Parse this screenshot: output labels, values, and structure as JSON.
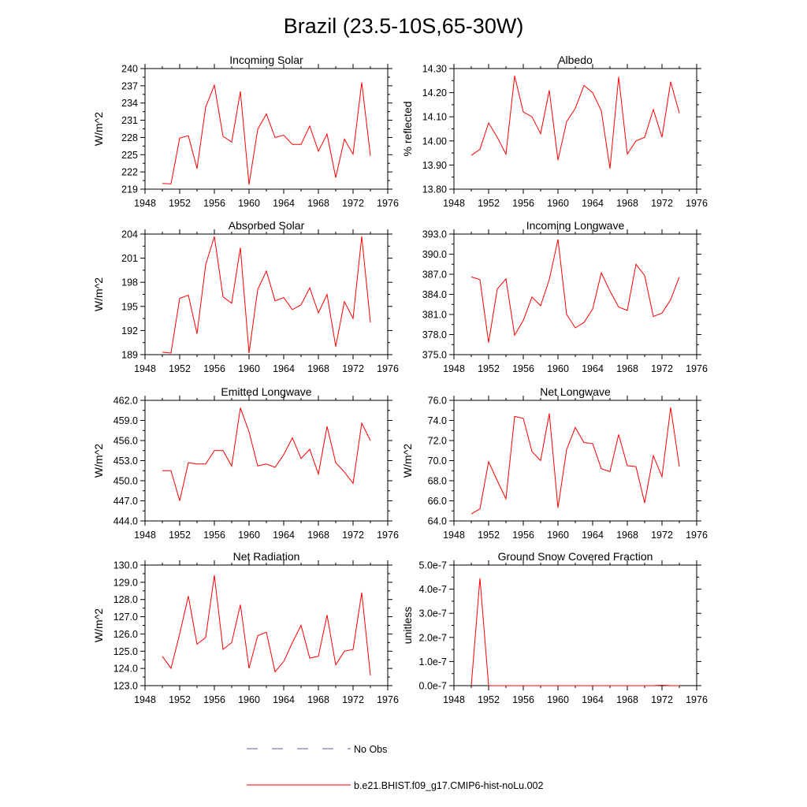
{
  "page": {
    "title": "Brazil (23.5-10S,65-30W)"
  },
  "colors": {
    "model_line": "#ff0000",
    "obs_line": "#5b5bb0",
    "axis": "#000000"
  },
  "legend": {
    "obs_label": "No Obs",
    "model_label": "b.e21.BHIST.f09_g17.CMIP6-hist-noLu.002"
  },
  "chart_data": [
    {
      "type": "line",
      "title": "Incoming Solar",
      "ylabel": "W/m^2",
      "xlim": [
        1948,
        1976
      ],
      "ylim": [
        219,
        240
      ],
      "xticks": [
        1948,
        1952,
        1956,
        1960,
        1964,
        1968,
        1972,
        1976
      ],
      "xtick_labels": [
        "1948",
        "1952",
        "1956",
        "1960",
        "1964",
        "1968",
        "1972",
        "1976"
      ],
      "yticks": [
        219,
        222,
        225,
        228,
        231,
        234,
        237,
        240
      ],
      "ytick_labels": [
        "219",
        "222",
        "225",
        "228",
        "231",
        "234",
        "237",
        "240"
      ],
      "x": [
        1950,
        1951,
        1952,
        1953,
        1954,
        1955,
        1956,
        1957,
        1958,
        1959,
        1960,
        1961,
        1962,
        1963,
        1964,
        1965,
        1966,
        1967,
        1968,
        1969,
        1970,
        1971,
        1972,
        1973,
        1974
      ],
      "series": [
        {
          "values": [
            220.0,
            219.9,
            227.9,
            228.3,
            222.6,
            233.3,
            237.1,
            228.2,
            227.2,
            236.0,
            219.8,
            229.4,
            232.1,
            228.0,
            228.4,
            226.8,
            226.8,
            230.0,
            225.6,
            228.6,
            221.0,
            227.7,
            225.1,
            237.6,
            224.8
          ]
        }
      ]
    },
    {
      "type": "line",
      "title": "Albedo",
      "ylabel": "% reflected",
      "xlim": [
        1948,
        1976
      ],
      "ylim": [
        13.8,
        14.3
      ],
      "xticks": [
        1948,
        1952,
        1956,
        1960,
        1964,
        1968,
        1972,
        1976
      ],
      "xtick_labels": [
        "1948",
        "1952",
        "1956",
        "1960",
        "1964",
        "1968",
        "1972",
        "1976"
      ],
      "yticks": [
        13.8,
        13.9,
        14.0,
        14.1,
        14.2,
        14.3
      ],
      "ytick_labels": [
        "13.80",
        "13.90",
        "14.00",
        "14.10",
        "14.20",
        "14.30"
      ],
      "x": [
        1950,
        1951,
        1952,
        1953,
        1954,
        1955,
        1956,
        1957,
        1958,
        1959,
        1960,
        1961,
        1962,
        1963,
        1964,
        1965,
        1966,
        1967,
        1968,
        1969,
        1970,
        1971,
        1972,
        1973,
        1974
      ],
      "series": [
        {
          "values": [
            13.94,
            13.965,
            14.075,
            14.015,
            13.945,
            14.27,
            14.12,
            14.1,
            14.03,
            14.21,
            13.92,
            14.08,
            14.135,
            14.23,
            14.2,
            14.125,
            13.885,
            14.265,
            13.945,
            14.0,
            14.015,
            14.13,
            14.015,
            14.245,
            14.115
          ]
        }
      ]
    },
    {
      "type": "line",
      "title": "Absorbed Solar",
      "ylabel": "W/m^2",
      "xlim": [
        1948,
        1976
      ],
      "ylim": [
        189,
        204
      ],
      "xticks": [
        1948,
        1952,
        1956,
        1960,
        1964,
        1968,
        1972,
        1976
      ],
      "xtick_labels": [
        "1948",
        "1952",
        "1956",
        "1960",
        "1964",
        "1968",
        "1972",
        "1976"
      ],
      "yticks": [
        189,
        192,
        195,
        198,
        201,
        204
      ],
      "ytick_labels": [
        "189",
        "192",
        "195",
        "198",
        "201",
        "204"
      ],
      "x": [
        1950,
        1951,
        1952,
        1953,
        1954,
        1955,
        1956,
        1957,
        1958,
        1959,
        1960,
        1961,
        1962,
        1963,
        1964,
        1965,
        1966,
        1967,
        1968,
        1969,
        1970,
        1971,
        1972,
        1973,
        1974
      ],
      "series": [
        {
          "values": [
            189.3,
            189.2,
            196.0,
            196.4,
            191.6,
            200.2,
            203.7,
            196.2,
            195.4,
            202.3,
            189.2,
            197.1,
            199.4,
            195.7,
            196.1,
            194.6,
            195.2,
            197.3,
            194.2,
            196.5,
            190.0,
            195.6,
            193.5,
            203.7,
            193.0
          ]
        }
      ]
    },
    {
      "type": "line",
      "title": "Incoming Longwave",
      "ylabel": "",
      "xlim": [
        1948,
        1976
      ],
      "ylim": [
        375,
        393
      ],
      "xticks": [
        1948,
        1952,
        1956,
        1960,
        1964,
        1968,
        1972,
        1976
      ],
      "xtick_labels": [
        "1948",
        "1952",
        "1956",
        "1960",
        "1964",
        "1968",
        "1972",
        "1976"
      ],
      "yticks": [
        375,
        378,
        381,
        384,
        387,
        390,
        393
      ],
      "ytick_labels": [
        "375.0",
        "378.0",
        "381.0",
        "384.0",
        "387.0",
        "390.0",
        "393.0"
      ],
      "x": [
        1950,
        1951,
        1952,
        1953,
        1954,
        1955,
        1956,
        1957,
        1958,
        1959,
        1960,
        1961,
        1962,
        1963,
        1964,
        1965,
        1966,
        1967,
        1968,
        1969,
        1970,
        1971,
        1972,
        1973,
        1974
      ],
      "series": [
        {
          "values": [
            386.6,
            386.2,
            376.8,
            384.8,
            386.3,
            377.9,
            380.1,
            383.6,
            382.3,
            386.2,
            392.2,
            381.0,
            379.0,
            379.8,
            381.8,
            387.2,
            384.5,
            382.1,
            381.6,
            388.5,
            386.8,
            380.7,
            381.2,
            383.2,
            386.6
          ]
        }
      ]
    },
    {
      "type": "line",
      "title": "Emitted Longwave",
      "ylabel": "W/m^2",
      "xlim": [
        1948,
        1976
      ],
      "ylim": [
        444,
        462
      ],
      "xticks": [
        1948,
        1952,
        1956,
        1960,
        1964,
        1968,
        1972,
        1976
      ],
      "xtick_labels": [
        "1948",
        "1952",
        "1956",
        "1960",
        "1964",
        "1968",
        "1972",
        "1976"
      ],
      "yticks": [
        444,
        447,
        450,
        453,
        456,
        459,
        462
      ],
      "ytick_labels": [
        "444.0",
        "447.0",
        "450.0",
        "453.0",
        "456.0",
        "459.0",
        "462.0"
      ],
      "x": [
        1950,
        1951,
        1952,
        1953,
        1954,
        1955,
        1956,
        1957,
        1958,
        1959,
        1960,
        1961,
        1962,
        1963,
        1964,
        1965,
        1966,
        1967,
        1968,
        1969,
        1970,
        1971,
        1972,
        1973,
        1974
      ],
      "series": [
        {
          "values": [
            451.5,
            451.5,
            447.0,
            452.7,
            452.5,
            452.5,
            454.5,
            454.5,
            452.2,
            460.9,
            457.3,
            452.2,
            452.5,
            452.0,
            453.9,
            456.4,
            453.3,
            454.7,
            451.0,
            458.1,
            452.7,
            451.3,
            449.6,
            458.6,
            456.0
          ]
        }
      ]
    },
    {
      "type": "line",
      "title": "Net Longwave",
      "ylabel": "W/m^2",
      "xlim": [
        1948,
        1976
      ],
      "ylim": [
        64,
        76
      ],
      "xticks": [
        1948,
        1952,
        1956,
        1960,
        1964,
        1968,
        1972,
        1976
      ],
      "xtick_labels": [
        "1948",
        "1952",
        "1956",
        "1960",
        "1964",
        "1968",
        "1972",
        "1976"
      ],
      "yticks": [
        64,
        66,
        68,
        70,
        72,
        74,
        76
      ],
      "ytick_labels": [
        "64.0",
        "66.0",
        "68.0",
        "70.0",
        "72.0",
        "74.0",
        "76.0"
      ],
      "x": [
        1950,
        1951,
        1952,
        1953,
        1954,
        1955,
        1956,
        1957,
        1958,
        1959,
        1960,
        1961,
        1962,
        1963,
        1964,
        1965,
        1966,
        1967,
        1968,
        1969,
        1970,
        1971,
        1972,
        1973,
        1974
      ],
      "series": [
        {
          "values": [
            64.7,
            65.2,
            69.9,
            68.0,
            66.2,
            74.4,
            74.2,
            70.9,
            70.0,
            74.7,
            65.3,
            71.1,
            73.3,
            71.8,
            71.7,
            69.2,
            68.9,
            72.6,
            69.5,
            69.4,
            65.8,
            70.5,
            68.4,
            75.3,
            69.4
          ]
        }
      ]
    },
    {
      "type": "line",
      "title": "Net Radiation",
      "ylabel": "W/m^2",
      "xlim": [
        1948,
        1976
      ],
      "ylim": [
        123,
        130
      ],
      "xticks": [
        1948,
        1952,
        1956,
        1960,
        1964,
        1968,
        1972,
        1976
      ],
      "xtick_labels": [
        "1948",
        "1952",
        "1956",
        "1960",
        "1964",
        "1968",
        "1972",
        "1976"
      ],
      "yticks": [
        123,
        124,
        125,
        126,
        127,
        128,
        129,
        130
      ],
      "ytick_labels": [
        "123.0",
        "124.0",
        "125.0",
        "126.0",
        "127.0",
        "128.0",
        "129.0",
        "130.0"
      ],
      "x": [
        1950,
        1951,
        1952,
        1953,
        1954,
        1955,
        1956,
        1957,
        1958,
        1959,
        1960,
        1961,
        1962,
        1963,
        1964,
        1965,
        1966,
        1967,
        1968,
        1969,
        1970,
        1971,
        1972,
        1973,
        1974
      ],
      "series": [
        {
          "values": [
            124.7,
            124.0,
            126.0,
            128.2,
            125.4,
            125.8,
            129.4,
            125.1,
            125.5,
            127.7,
            124.0,
            125.9,
            126.1,
            123.8,
            124.4,
            125.5,
            126.5,
            124.6,
            124.7,
            127.1,
            124.2,
            125.0,
            125.1,
            128.4,
            123.6
          ]
        }
      ]
    },
    {
      "type": "line",
      "title": "Ground Snow Covered Fraction",
      "ylabel": "unitless",
      "xlim": [
        1948,
        1976
      ],
      "ylim": [
        0,
        5e-07
      ],
      "xticks": [
        1948,
        1952,
        1956,
        1960,
        1964,
        1968,
        1972,
        1976
      ],
      "xtick_labels": [
        "1948",
        "1952",
        "1956",
        "1960",
        "1964",
        "1968",
        "1972",
        "1976"
      ],
      "yticks": [
        0,
        1e-07,
        2e-07,
        3e-07,
        4e-07,
        5e-07
      ],
      "ytick_labels": [
        "0.0e-7",
        "1.0e-7",
        "2.0e-7",
        "3.0e-7",
        "4.0e-7",
        "5.0e-7"
      ],
      "x": [
        1950,
        1951,
        1952,
        1953,
        1954,
        1955,
        1956,
        1957,
        1958,
        1959,
        1960,
        1961,
        1962,
        1963,
        1964,
        1965,
        1966,
        1967,
        1968,
        1969,
        1970,
        1971,
        1972,
        1973,
        1974
      ],
      "series": [
        {
          "values": [
            0,
            4.45e-07,
            0,
            0,
            0,
            0,
            0,
            0,
            0,
            0,
            0,
            0,
            0,
            0,
            0,
            0,
            0,
            0,
            0,
            0,
            0,
            0,
            1.5e-09,
            0,
            0
          ]
        }
      ]
    }
  ]
}
